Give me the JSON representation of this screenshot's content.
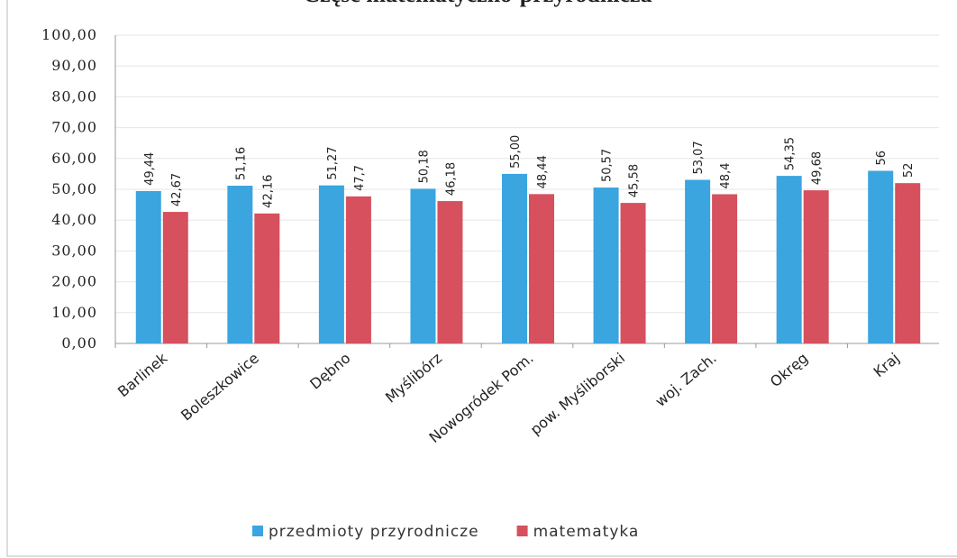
{
  "chart_data": {
    "type": "bar",
    "title": "Część matematyczno-przyrodnicza",
    "categories": [
      "Barlinek",
      "Boleszkowice",
      "Dębno",
      "Myślibórz",
      "Nowogródek Pom.",
      "pow. Myśliborski",
      "woj. Zach.",
      "Okręg",
      "Kraj"
    ],
    "series": [
      {
        "name": "przedmioty przyrodnicze",
        "color": "#3aa5df",
        "values": [
          49.44,
          51.16,
          51.27,
          50.18,
          55.0,
          50.57,
          53.07,
          54.35,
          56
        ],
        "value_labels": [
          "49,44",
          "51,16",
          "51,27",
          "50,18",
          "55,00",
          "50,57",
          "53,07",
          "54,35",
          "56"
        ]
      },
      {
        "name": "matematyka",
        "color": "#d6505e",
        "values": [
          42.67,
          42.16,
          47.7,
          46.18,
          48.44,
          45.58,
          48.4,
          49.68,
          52
        ],
        "value_labels": [
          "42,67",
          "42,16",
          "47,7",
          "46,18",
          "48,44",
          "45,58",
          "48,4",
          "49,68",
          "52"
        ]
      }
    ],
    "ylim": [
      0,
      100
    ],
    "yticks": [
      {
        "value": 0,
        "label": "0,00"
      },
      {
        "value": 10,
        "label": "10,00"
      },
      {
        "value": 20,
        "label": "20,00"
      },
      {
        "value": 30,
        "label": "30,00"
      },
      {
        "value": 40,
        "label": "40,00"
      },
      {
        "value": 50,
        "label": "50,00"
      },
      {
        "value": 60,
        "label": "60,00"
      },
      {
        "value": 70,
        "label": "70,00"
      },
      {
        "value": 80,
        "label": "80,00"
      },
      {
        "value": 90,
        "label": "90,00"
      },
      {
        "value": 100,
        "label": "100,00"
      }
    ],
    "grid": true
  }
}
